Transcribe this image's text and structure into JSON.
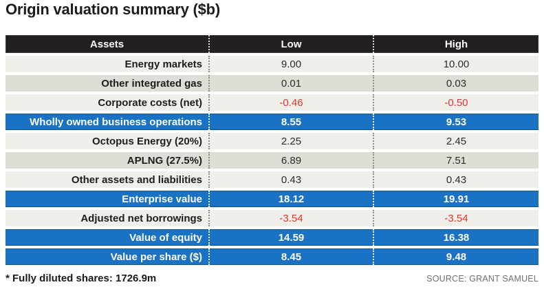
{
  "title": "Origin valuation summary ($b)",
  "table": {
    "columns": {
      "assets": "Assets",
      "low": "Low",
      "high": "High"
    },
    "rows": [
      {
        "label": "Energy markets",
        "low": "9.00",
        "high": "10.00"
      },
      {
        "label": "Other integrated gas",
        "low": "0.01",
        "high": "0.03"
      },
      {
        "label": "Corporate costs (net)",
        "low": "-0.46",
        "high": "-0.50"
      },
      {
        "label": "Wholly owned business operations",
        "low": "8.55",
        "high": "9.53"
      },
      {
        "label": "Octopus Energy (20%)",
        "low": "2.25",
        "high": "2.45"
      },
      {
        "label": "APLNG (27.5%)",
        "low": "6.89",
        "high": "7.51"
      },
      {
        "label": "Other assets and liabilities",
        "low": "0.43",
        "high": "0.43"
      },
      {
        "label": "Enterprise value",
        "low": "18.12",
        "high": "19.91"
      },
      {
        "label": "Adjusted net borrowings",
        "low": "-3.54",
        "high": "-3.54"
      },
      {
        "label": "Value of equity",
        "low": "14.59",
        "high": "16.38"
      },
      {
        "label": "Value per share ($)",
        "low": "8.45",
        "high": "9.48"
      }
    ]
  },
  "footnote": "* Fully diluted shares: 1726.9m",
  "source": "SOURCE: GRANT SAMUEL",
  "colors": {
    "header_black": "#231f20",
    "highlight_blue": "#1a72c4",
    "negative_red": "#e0342e",
    "row_light": "#f0efe9",
    "row_dark": "#dfded6"
  },
  "chart_data": {
    "type": "table",
    "title": "Origin valuation summary ($b)",
    "columns": [
      "Assets",
      "Low",
      "High"
    ],
    "rows": [
      [
        "Energy markets",
        9.0,
        10.0
      ],
      [
        "Other integrated gas",
        0.01,
        0.03
      ],
      [
        "Corporate costs (net)",
        -0.46,
        -0.5
      ],
      [
        "Wholly owned business operations",
        8.55,
        9.53
      ],
      [
        "Octopus Energy (20%)",
        2.25,
        2.45
      ],
      [
        "APLNG (27.5%)",
        6.89,
        7.51
      ],
      [
        "Other assets and liabilities",
        0.43,
        0.43
      ],
      [
        "Enterprise value",
        18.12,
        19.91
      ],
      [
        "Adjusted net borrowings",
        -3.54,
        -3.54
      ],
      [
        "Value of equity",
        14.59,
        16.38
      ],
      [
        "Value per share ($)",
        8.45,
        9.48
      ]
    ],
    "highlight_rows": [
      "Wholly owned business operations",
      "Enterprise value",
      "Value of equity",
      "Value per share ($)"
    ],
    "negative_value_rows": [
      "Corporate costs (net)",
      "Adjusted net borrowings"
    ],
    "footnote": "* Fully diluted shares: 1726.9m",
    "source": "SOURCE: GRANT SAMUEL"
  }
}
